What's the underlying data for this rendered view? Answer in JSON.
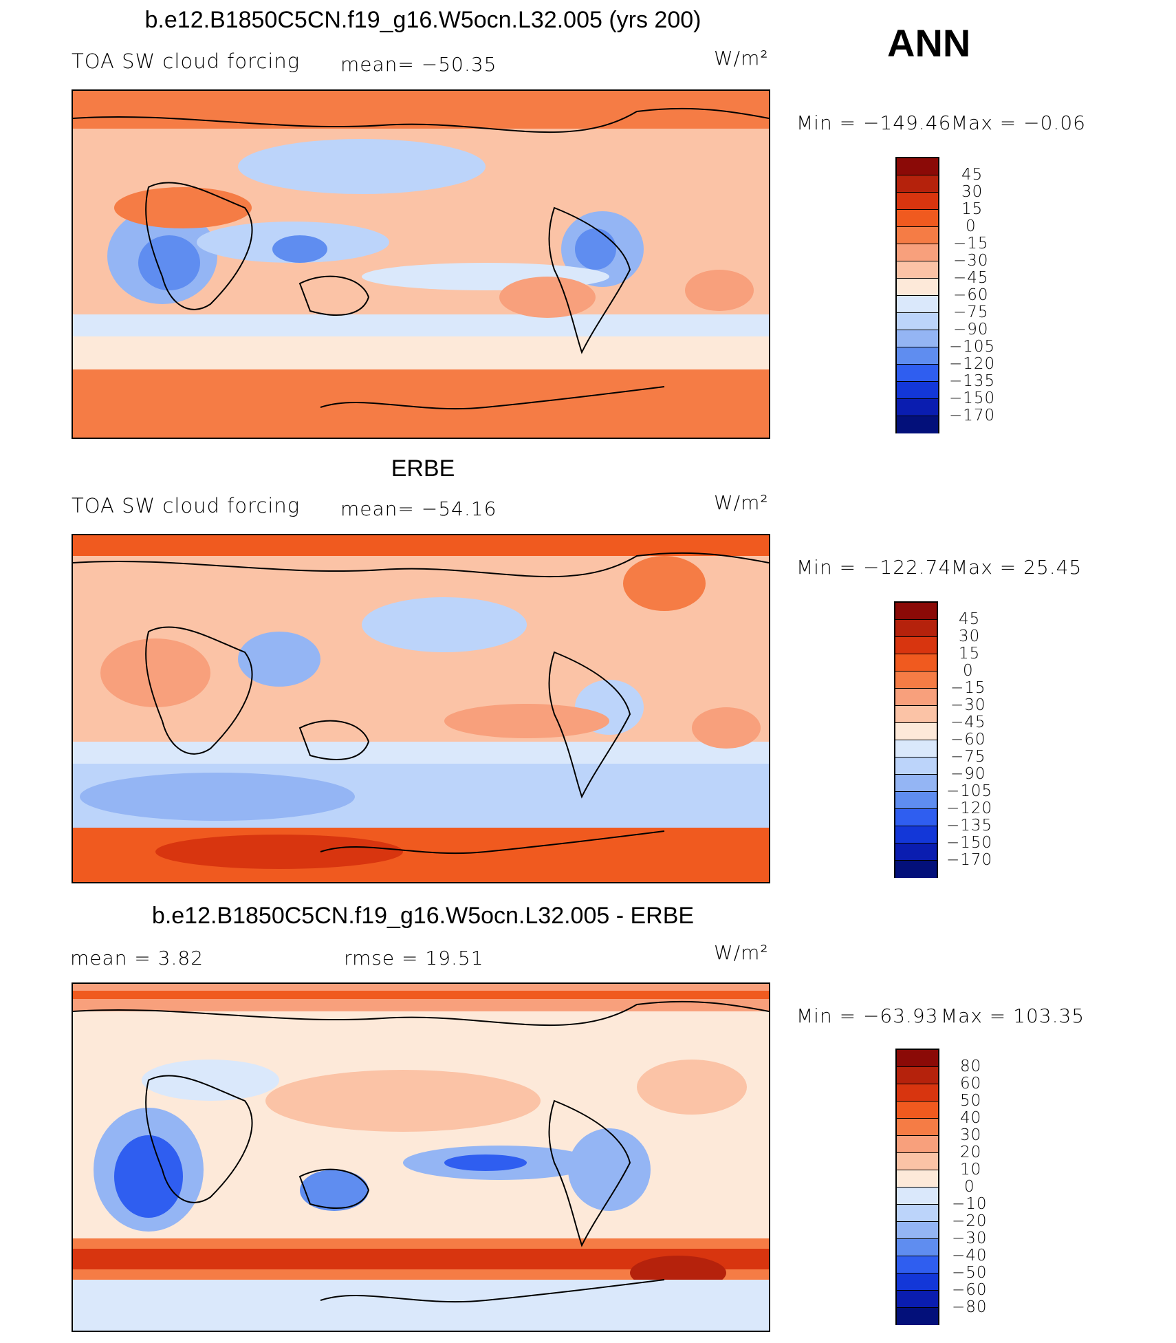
{
  "season": "ANN",
  "units": "W/m²",
  "panels": [
    {
      "title": "b.e12.B1850C5CN.f19_g16.W5ocn.L32.005 (yrs 200)",
      "variable": "TOA SW cloud forcing",
      "mean_text": "mean= −50.35",
      "rmse_text": "",
      "min_text": "Min  =  −149.46",
      "max_text": "Max  =   −0.06",
      "colorbar_levels": [
        "45",
        "30",
        "15",
        "0",
        "−15",
        "−30",
        "−45",
        "−60",
        "−75",
        "−90",
        "−105",
        "−120",
        "−135",
        "−150",
        "−170"
      ],
      "colorbar_colors": [
        "#8b0a07",
        "#b5220c",
        "#d8350f",
        "#f05a1f",
        "#f57c45",
        "#f8a07c",
        "#fbc3a6",
        "#fde9d9",
        "#dae8fb",
        "#bcd4fa",
        "#94b5f4",
        "#5f8df0",
        "#2f5ef0",
        "#1337d8",
        "#0a1db0",
        "#03107a"
      ]
    },
    {
      "title": "ERBE",
      "variable": "TOA SW cloud forcing",
      "mean_text": "mean= −54.16",
      "rmse_text": "",
      "min_text": "Min  =  −122.74",
      "max_text": "Max  =   25.45",
      "colorbar_levels": [
        "45",
        "30",
        "15",
        "0",
        "−15",
        "−30",
        "−45",
        "−60",
        "−75",
        "−90",
        "−105",
        "−120",
        "−135",
        "−150",
        "−170"
      ],
      "colorbar_colors": [
        "#8b0a07",
        "#b5220c",
        "#d8350f",
        "#f05a1f",
        "#f57c45",
        "#f8a07c",
        "#fbc3a6",
        "#fde9d9",
        "#dae8fb",
        "#bcd4fa",
        "#94b5f4",
        "#5f8df0",
        "#2f5ef0",
        "#1337d8",
        "#0a1db0",
        "#03107a"
      ]
    },
    {
      "title": "b.e12.B1850C5CN.f19_g16.W5ocn.L32.005 - ERBE",
      "variable": "",
      "mean_text": "mean  =     3.82",
      "rmse_text": "rmse  =    19.51",
      "min_text": "Min  =  −63.93",
      "max_text": "Max  =  103.35",
      "colorbar_levels": [
        "80",
        "60",
        "50",
        "40",
        "30",
        "20",
        "10",
        "0",
        "−10",
        "−20",
        "−30",
        "−40",
        "−50",
        "−60",
        "−80"
      ],
      "colorbar_colors": [
        "#8b0a07",
        "#b5220c",
        "#d8350f",
        "#f05a1f",
        "#f57c45",
        "#f8a07c",
        "#fbc3a6",
        "#fde9d9",
        "#dae8fb",
        "#bcd4fa",
        "#94b5f4",
        "#5f8df0",
        "#2f5ef0",
        "#1337d8",
        "#0a1db0",
        "#03107a"
      ]
    }
  ]
}
